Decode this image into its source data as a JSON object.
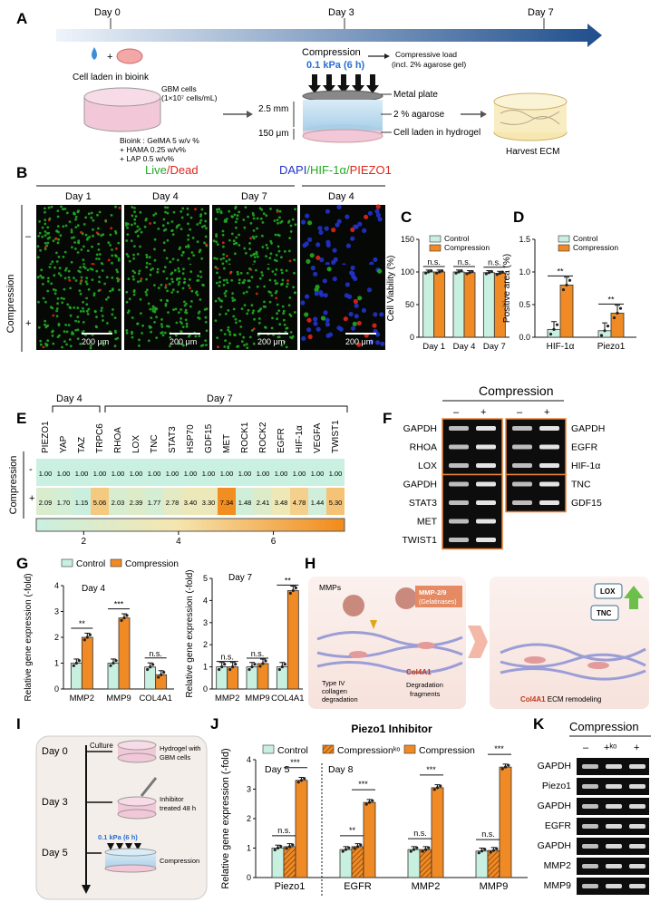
{
  "panel_letters": [
    "A",
    "B",
    "C",
    "D",
    "E",
    "F",
    "G",
    "H",
    "I",
    "J",
    "K"
  ],
  "panelA": {
    "days": [
      "Day 0",
      "Day 3",
      "Day 7"
    ],
    "cell_label": "Cell laden in bioink",
    "gbm_line1": "GBM cells",
    "gbm_line2": "(1×10⁷ cells/mL)",
    "bioink_lines": [
      "Bioink : GelMA  5 w/v %",
      "+ HAMA 0.25 w/v%",
      "+ LAP 0.5 w/v%"
    ],
    "compression_title": "Compression",
    "compression_value": "0.1 kPa (6 h)",
    "load_line1": "Compressive load",
    "load_line2": "(incl. 2% agarose gel)",
    "dim1": "2.5 mm",
    "dim2": "150 μm",
    "layers": [
      "Metal plate",
      "2 % agarose",
      "Cell laden in hydrogel"
    ],
    "harvest": "Harvest ECM",
    "plus": "+"
  },
  "panelB": {
    "title_live": "Live",
    "title_dead": "/Dead",
    "title_dapi": "DAPI",
    "title_hif": "/HIF-1α/",
    "title_piezo": "PIEZO1",
    "days": [
      "Day 1",
      "Day 4",
      "Day 7",
      "Day 4"
    ],
    "scale": "200 μm",
    "side_label": "Compression",
    "minus": "–",
    "plus": "+"
  },
  "panelE": {
    "day4": "Day 4",
    "day7": "Day 7",
    "genes": [
      "PIEZO1",
      "YAP",
      "TAZ",
      "TRPC6",
      "RHOA",
      "LOX",
      "TNC",
      "STAT3",
      "HSP70",
      "GDF15",
      "MET",
      "ROCK1",
      "ROCK2",
      "EGFR",
      "HIF-1α",
      "VEGFA",
      "TWIST1"
    ],
    "row_minus": [
      "1.00",
      "1.00",
      "1.00",
      "1.00",
      "1.00",
      "1.00",
      "1.00",
      "1.00",
      "1.00",
      "1.00",
      "1.00",
      "1.00",
      "1.00",
      "1.00",
      "1.00",
      "1.00",
      "1.00"
    ],
    "row_plus": [
      "2.09",
      "1.70",
      "1.15",
      "5.06",
      "2.03",
      "2.39",
      "1.77",
      "2.78",
      "3.40",
      "3.30",
      "7.34",
      "1.48",
      "2.41",
      "3.48",
      "4.78",
      "1.44",
      "5.30"
    ],
    "side_label": "Compression",
    "minus": "-",
    "plus": "+",
    "colorbar_ticks": [
      "2",
      "4",
      "6"
    ],
    "colors": {
      "low": "#c9f0e0",
      "mid": "#f5e6b0",
      "high": "#f28a1a"
    }
  },
  "panelF": {
    "title": "Compression",
    "minus": "–",
    "plus": "+",
    "left_genes": [
      "GAPDH",
      "RHOA",
      "LOX",
      "GAPDH",
      "STAT3",
      "MET",
      "TWIST1"
    ],
    "right_genes": [
      "GAPDH",
      "EGFR",
      "HIF-1α",
      "TNC",
      "GDF15"
    ]
  },
  "panelH": {
    "mmps": "MMPs",
    "mmp_box": "MMP-2/9",
    "mmp_box2": "(Gelatinases)",
    "typeiv1": "Type IV",
    "typeiv2": "collagen",
    "typeiv3": "degradation",
    "col4a1": "Col4A1",
    "frag1": "Degradation",
    "frag2": "fragments",
    "lox": "LOX",
    "tnc": "TNC",
    "ecm_col": "Col4A1",
    "ecm_text": " ECM remodeling"
  },
  "panelI": {
    "culture": "Culture",
    "days": [
      "Day 0",
      "Day 3",
      "Day 5"
    ],
    "hydrogel1": "Hydrogel with",
    "hydrogel2": "GBM cells",
    "inhib1": "Inhibitor",
    "inhib2": "treated 48 h",
    "pressure": "0.1 kPa (6 h)",
    "compression": "Compression"
  },
  "panelK": {
    "title": "Compression",
    "cols": [
      "–",
      "+ᵏᵒ",
      "+"
    ],
    "genes": [
      "GAPDH",
      "Piezo1",
      "GAPDH",
      "EGFR",
      "GAPDH",
      "MMP2",
      "MMP9"
    ]
  },
  "colors": {
    "control": "#c8f0e0",
    "compression": "#f08a24",
    "ko": "#f08a24",
    "arrow_start": "#e6f0fa",
    "arrow_end": "#1f4e8c",
    "live": "#22aa22",
    "dead": "#e0261a",
    "dapi": "#2233cc"
  },
  "chart_data": [
    {
      "id": "C",
      "type": "bar",
      "title": "",
      "ylabel": "Cell Viability (%)",
      "categories": [
        "Day 1",
        "Day 4",
        "Day 7"
      ],
      "series": [
        {
          "name": "Control",
          "values": [
            100,
            100,
            99
          ]
        },
        {
          "name": "Compression",
          "values": [
            100,
            99,
            98
          ]
        }
      ],
      "ylim": [
        0,
        150
      ],
      "yticks": [
        "0",
        "50",
        "100",
        "150"
      ],
      "annotations": [
        "n.s.",
        "n.s.",
        "n.s."
      ]
    },
    {
      "id": "D",
      "type": "bar",
      "ylabel": "Positive area (%)",
      "categories": [
        "HIF-1α",
        "Piezo1"
      ],
      "series": [
        {
          "name": "Control",
          "values": [
            0.12,
            0.1
          ]
        },
        {
          "name": "Compression",
          "values": [
            0.8,
            0.37
          ]
        }
      ],
      "ylim": [
        0,
        1.5
      ],
      "yticks": [
        "0.0",
        "0.5",
        "1.0",
        "1.5"
      ],
      "annotations": [
        "**",
        "**"
      ]
    },
    {
      "id": "G1",
      "type": "bar",
      "subtitle": "Day 4",
      "ylabel": "Relative gene expression (-fold)",
      "categories": [
        "MMP2",
        "MMP9",
        "COL4A1"
      ],
      "series": [
        {
          "name": "Control",
          "values": [
            1.0,
            1.0,
            0.85
          ]
        },
        {
          "name": "Compression",
          "values": [
            2.0,
            2.75,
            0.55
          ]
        }
      ],
      "ylim": [
        0,
        4
      ],
      "yticks": [
        "0",
        "1",
        "2",
        "3",
        "4"
      ],
      "annotations": [
        "**",
        "***",
        "n.s."
      ]
    },
    {
      "id": "G2",
      "type": "bar",
      "subtitle": "Day 7",
      "ylabel": "Relative gene expression (-fold)",
      "categories": [
        "MMP2",
        "MMP9",
        "COL4A1"
      ],
      "series": [
        {
          "name": "Control",
          "values": [
            1.0,
            1.0,
            1.0
          ]
        },
        {
          "name": "Compression",
          "values": [
            1.0,
            1.15,
            4.45
          ]
        }
      ],
      "ylim": [
        0,
        5
      ],
      "yticks": [
        "0",
        "1",
        "2",
        "3",
        "4",
        "5"
      ],
      "annotations": [
        "n.s.",
        "n.s.",
        "**"
      ]
    },
    {
      "id": "J",
      "type": "bar",
      "title": "Piezo1 Inhibitor",
      "ylabel": "Relative gene expression (-fold)",
      "subtitles": [
        "Day 5",
        "Day 8"
      ],
      "categories": [
        "Piezo1",
        "EGFR",
        "MMP2",
        "MMP9"
      ],
      "series": [
        {
          "name": "Control",
          "values": [
            1.0,
            0.95,
            0.95,
            0.9
          ]
        },
        {
          "name": "Compressionᵏᵒ",
          "values": [
            1.05,
            1.05,
            0.95,
            0.92
          ]
        },
        {
          "name": "Compression",
          "values": [
            3.3,
            2.55,
            3.05,
            3.75
          ]
        }
      ],
      "ylim": [
        0,
        4
      ],
      "yticks": [
        "0",
        "1",
        "2",
        "3",
        "4"
      ],
      "annotations": [
        [
          "n.s.",
          "***"
        ],
        [
          "**",
          "***"
        ],
        [
          "n.s.",
          "***"
        ],
        [
          "n.s.",
          "***"
        ]
      ]
    }
  ]
}
